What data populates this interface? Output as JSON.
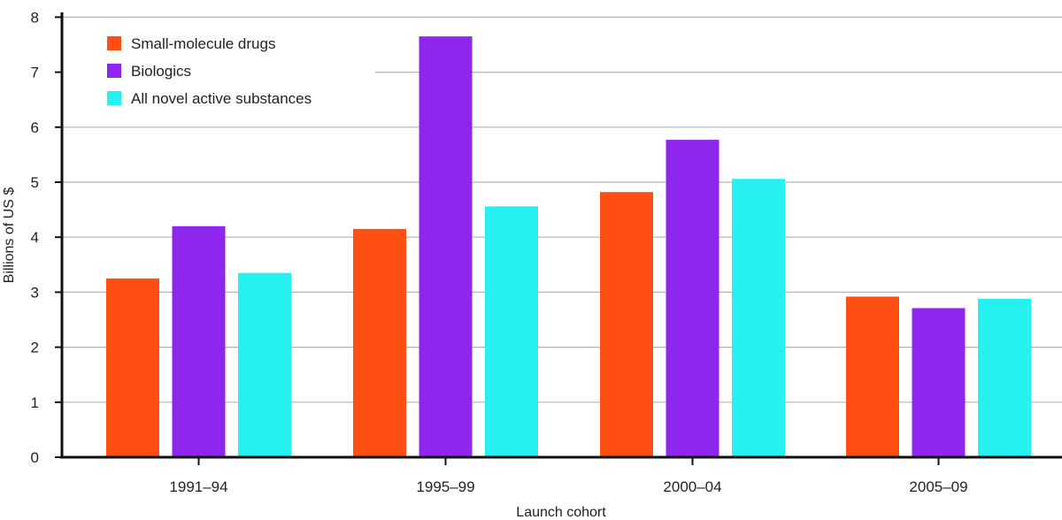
{
  "chart_data": {
    "type": "bar",
    "title": "",
    "xlabel": "Launch cohort",
    "ylabel": "Billions of US $",
    "categories": [
      "1991–94",
      "1995–99",
      "2000–04",
      "2005–09"
    ],
    "ylim": [
      0,
      8
    ],
    "yticks": [
      0,
      1,
      2,
      3,
      4,
      5,
      6,
      7,
      8
    ],
    "grid": true,
    "legend_position": "top-left",
    "series": [
      {
        "name": "Small-molecule drugs",
        "color": "#ff4f12",
        "values": [
          3.25,
          4.15,
          4.82,
          2.92
        ]
      },
      {
        "name": "Biologics",
        "color": "#8f26ee",
        "values": [
          4.2,
          7.65,
          5.77,
          2.71
        ]
      },
      {
        "name": "All novel active substances",
        "color": "#27f0f0",
        "values": [
          3.35,
          4.56,
          5.06,
          2.88
        ]
      }
    ]
  }
}
